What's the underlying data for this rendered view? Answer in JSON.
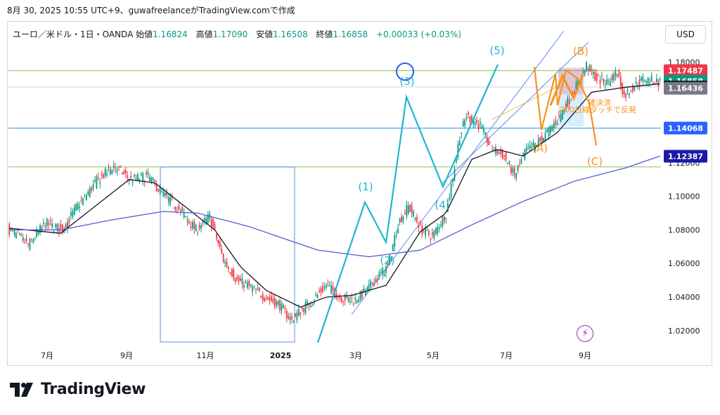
{
  "header": {
    "timestamp": "8月 30, 2025 10:55 UTC+9、guwafreelanceがTradingView.comで作成"
  },
  "legend": {
    "symbol": "ユーロ／米ドル・1日・OANDA",
    "open_label": "始値",
    "open": "1.16824",
    "high_label": "高値",
    "high": "1.17090",
    "low_label": "安値",
    "low": "1.16508",
    "close_label": "終値",
    "close": "1.16858",
    "change": "+0.00033 (+0.03%)"
  },
  "currency_button": "USD",
  "brand": {
    "name": "TradingView"
  },
  "colors": {
    "up": "#089981",
    "down": "#f23645",
    "ma_short": "#131722",
    "ma_long": "#5b5bd6",
    "wave": "#1fb6d0",
    "abc": "#f7931a",
    "hline_green": "#8bc34a",
    "hline_blue": "#2196f3"
  },
  "chart_data": {
    "type": "candlestick",
    "symbol": "EURUSD",
    "timeframe": "1D",
    "x_labels": [
      "7月",
      "9月",
      "11月",
      "2025",
      "3月",
      "5月",
      "7月",
      "9月"
    ],
    "ylim": [
      1.012,
      1.186
    ],
    "y_ticks": [
      "1.18000",
      "1.12000",
      "1.10000",
      "1.08000",
      "1.06000",
      "1.04000",
      "1.02000"
    ],
    "anchors": [
      [
        0,
        1.081
      ],
      [
        12,
        1.071
      ],
      [
        22,
        1.084
      ],
      [
        32,
        1.08
      ],
      [
        40,
        1.093
      ],
      [
        52,
        1.109
      ],
      [
        62,
        1.118
      ],
      [
        72,
        1.11
      ],
      [
        82,
        1.112
      ],
      [
        90,
        1.102
      ],
      [
        100,
        1.092
      ],
      [
        110,
        1.08
      ],
      [
        118,
        1.088
      ],
      [
        126,
        1.062
      ],
      [
        134,
        1.05
      ],
      [
        142,
        1.046
      ],
      [
        150,
        1.04
      ],
      [
        158,
        1.036
      ],
      [
        166,
        1.026
      ],
      [
        170,
        1.031
      ],
      [
        178,
        1.038
      ],
      [
        186,
        1.047
      ],
      [
        194,
        1.04
      ],
      [
        202,
        1.038
      ],
      [
        210,
        1.044
      ],
      [
        216,
        1.052
      ],
      [
        222,
        1.058
      ],
      [
        228,
        1.084
      ],
      [
        234,
        1.094
      ],
      [
        242,
        1.08
      ],
      [
        248,
        1.076
      ],
      [
        256,
        1.09
      ],
      [
        260,
        1.112
      ],
      [
        264,
        1.136
      ],
      [
        268,
        1.148
      ],
      [
        276,
        1.142
      ],
      [
        282,
        1.129
      ],
      [
        290,
        1.124
      ],
      [
        296,
        1.112
      ],
      [
        302,
        1.126
      ],
      [
        312,
        1.134
      ],
      [
        322,
        1.147
      ],
      [
        332,
        1.165
      ],
      [
        338,
        1.178
      ],
      [
        344,
        1.17
      ],
      [
        350,
        1.168
      ],
      [
        356,
        1.174
      ],
      [
        360,
        1.16
      ],
      [
        366,
        1.166
      ],
      [
        372,
        1.17
      ],
      [
        380,
        1.168
      ]
    ],
    "ma_short_anchors": [
      [
        0,
        1.081
      ],
      [
        30,
        1.078
      ],
      [
        50,
        1.094
      ],
      [
        70,
        1.11
      ],
      [
        85,
        1.108
      ],
      [
        100,
        1.096
      ],
      [
        120,
        1.08
      ],
      [
        135,
        1.058
      ],
      [
        150,
        1.044
      ],
      [
        170,
        1.034
      ],
      [
        185,
        1.04
      ],
      [
        200,
        1.041
      ],
      [
        220,
        1.047
      ],
      [
        240,
        1.079
      ],
      [
        255,
        1.09
      ],
      [
        270,
        1.122
      ],
      [
        285,
        1.128
      ],
      [
        300,
        1.124
      ],
      [
        320,
        1.138
      ],
      [
        340,
        1.162
      ],
      [
        360,
        1.165
      ],
      [
        380,
        1.167
      ]
    ],
    "ma_long_anchors": [
      [
        0,
        1.08
      ],
      [
        30,
        1.08
      ],
      [
        60,
        1.086
      ],
      [
        90,
        1.091
      ],
      [
        110,
        1.09
      ],
      [
        140,
        1.082
      ],
      [
        180,
        1.068
      ],
      [
        210,
        1.064
      ],
      [
        240,
        1.068
      ],
      [
        270,
        1.083
      ],
      [
        300,
        1.097
      ],
      [
        330,
        1.109
      ],
      [
        360,
        1.117
      ],
      [
        380,
        1.124
      ]
    ],
    "price_labels": [
      {
        "text": "1.17487",
        "value": 1.17487,
        "bg": "#f23645",
        "fg": "#ffffff"
      },
      {
        "text": "1.16858",
        "value": 1.16858,
        "bg": "#089981",
        "fg": "#ffffff"
      },
      {
        "text": "1.16514",
        "value": 1.16514,
        "bg": "#131722",
        "fg": "#ffffff"
      },
      {
        "text": "1.16436",
        "value": 1.16436,
        "bg": "#787b86",
        "fg": "#ffffff"
      },
      {
        "text": "1.14068",
        "value": 1.14068,
        "bg": "#2962ff",
        "fg": "#ffffff"
      },
      {
        "text": "1.12387",
        "value": 1.12387,
        "bg": "#1a1aa6",
        "fg": "#ffffff"
      }
    ],
    "horizontal_lines": [
      {
        "value": 1.17487,
        "color": "#8bc34a"
      },
      {
        "value": 1.16514,
        "color": "#cfd3db"
      },
      {
        "value": 1.14068,
        "color": "#2196f3"
      },
      {
        "value": 1.1175,
        "color": "#8bc34a"
      }
    ],
    "wave_labels": [
      "(1)",
      "(2)",
      "(3)",
      "(4)",
      "(5)"
    ],
    "abc_labels": [
      "(A)",
      "(B)",
      "(C)"
    ],
    "annotation": "200日線タッチで反発",
    "annotation2": "確決済"
  }
}
